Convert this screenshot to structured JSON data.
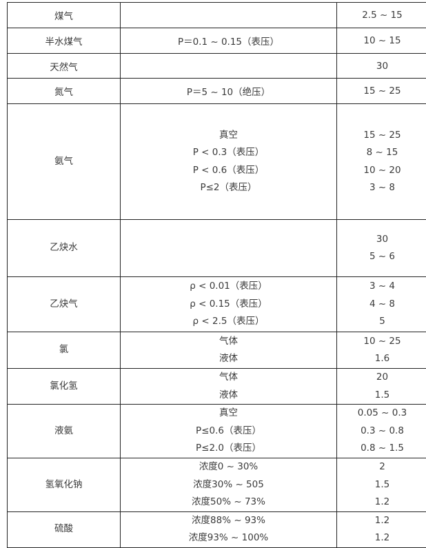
{
  "table": {
    "rows": [
      {
        "medium": "煤气",
        "condition": [],
        "velocity": [
          "2.5 ~ 15"
        ]
      },
      {
        "medium": "半水煤气",
        "condition": [
          "P＝0.1 ~ 0.15（表压）"
        ],
        "velocity": [
          "10 ~ 15"
        ]
      },
      {
        "medium": "天然气",
        "condition": [],
        "velocity": [
          "30"
        ]
      },
      {
        "medium": "氮气",
        "condition": [
          "P＝5 ~ 10（绝压）"
        ],
        "velocity": [
          "15 ~ 25"
        ]
      },
      {
        "medium": "氨气",
        "condition": [
          "真空",
          "P < 0.3（表压）",
          "P < 0.6（表压）",
          "P≤2（表压）"
        ],
        "velocity": [
          "15 ~ 25",
          "8 ~ 15",
          "10 ~ 20",
          "3 ~ 8"
        ]
      },
      {
        "medium": "乙炔水",
        "condition": [],
        "velocity": [
          "30",
          "5 ~ 6"
        ]
      },
      {
        "medium": "乙炔气",
        "condition": [
          "ρ < 0.01（表压）",
          "ρ < 0.15（表压）",
          "ρ < 2.5（表压）"
        ],
        "velocity": [
          "3 ~ 4",
          "4 ~ 8",
          "5"
        ]
      },
      {
        "medium": "氯",
        "condition": [
          "气体",
          "液体"
        ],
        "velocity": [
          "10 ~ 25",
          "1.6"
        ]
      },
      {
        "medium": "氯化氢",
        "condition": [
          "气体",
          "液体"
        ],
        "velocity": [
          "20",
          "1.5"
        ]
      },
      {
        "medium": "液氨",
        "condition": [
          "真空",
          "P≤0.6（表压）",
          "P≤2.0（表压）"
        ],
        "velocity": [
          "0.05 ~ 0.3",
          "0.3 ~ 0.8",
          "0.8 ~ 1.5"
        ]
      },
      {
        "medium": "氢氧化钠",
        "condition": [
          "浓度0 ~ 30%",
          "浓度30% ~ 505",
          "浓度50% ~ 73%"
        ],
        "velocity": [
          "2",
          "1.5",
          "1.2"
        ]
      },
      {
        "medium": "硫酸",
        "condition": [
          "浓度88% ~ 93%",
          "浓度93% ~ 100%"
        ],
        "velocity": [
          "1.2",
          "1.2"
        ]
      }
    ]
  }
}
